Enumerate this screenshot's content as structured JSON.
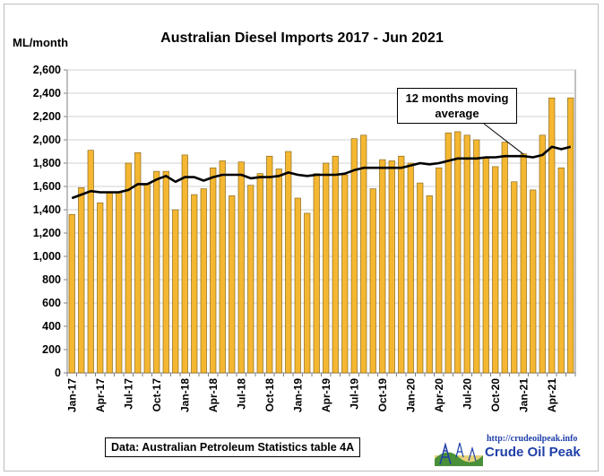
{
  "chart": {
    "title": "Australian Diesel Imports 2017 - Jun 2021",
    "y_unit": "ML/month",
    "callout_line1": "12 months moving",
    "callout_line2": "average",
    "source": "Data: Australian Petroleum Statistics table 4A"
  },
  "logo": {
    "url": "http://crudeoilpeak.info",
    "name": "Crude Oil Peak"
  },
  "colors": {
    "bar_fill": "#f5b731",
    "bar_stroke": "#7a5a10",
    "line": "#000000",
    "grid": "#d0d0d0",
    "logo_text": "#1f3fa8"
  },
  "chart_data": {
    "type": "bar",
    "title": "Australian Diesel Imports 2017 - Jun 2021",
    "ylabel": "ML/month",
    "ylim": [
      0,
      2600
    ],
    "yticks": [
      0,
      200,
      400,
      600,
      800,
      1000,
      1200,
      1400,
      1600,
      1800,
      2000,
      2200,
      2400,
      2600
    ],
    "ytick_labels": [
      "0",
      "200",
      "400",
      "600",
      "800",
      "1,000",
      "1,200",
      "1,400",
      "1,600",
      "1,800",
      "2,000",
      "2,200",
      "2,400",
      "2,600"
    ],
    "grid": true,
    "categories": [
      "Jan-17",
      "Feb-17",
      "Mar-17",
      "Apr-17",
      "May-17",
      "Jun-17",
      "Jul-17",
      "Aug-17",
      "Sep-17",
      "Oct-17",
      "Nov-17",
      "Dec-17",
      "Jan-18",
      "Feb-18",
      "Mar-18",
      "Apr-18",
      "May-18",
      "Jun-18",
      "Jul-18",
      "Aug-18",
      "Sep-18",
      "Oct-18",
      "Nov-18",
      "Dec-18",
      "Jan-19",
      "Feb-19",
      "Mar-19",
      "Apr-19",
      "May-19",
      "Jun-19",
      "Jul-19",
      "Aug-19",
      "Sep-19",
      "Oct-19",
      "Nov-19",
      "Dec-19",
      "Jan-20",
      "Feb-20",
      "Mar-20",
      "Apr-20",
      "May-20",
      "Jun-20",
      "Jul-20",
      "Aug-20",
      "Sep-20",
      "Oct-20",
      "Nov-20",
      "Dec-20",
      "Jan-21",
      "Feb-21",
      "Mar-21",
      "Apr-21",
      "May-21",
      "Jun-21"
    ],
    "x_tick_labels": [
      "Jan-17",
      "Apr-17",
      "Jul-17",
      "Oct-17",
      "Jan-18",
      "Apr-18",
      "Jul-18",
      "Oct-18",
      "Jan-19",
      "Apr-19",
      "Jul-19",
      "Oct-19",
      "Jan-20",
      "Apr-20",
      "Jul-20",
      "Oct-20",
      "Jan-21",
      "Apr-21"
    ],
    "series": [
      {
        "name": "Diesel imports",
        "type": "bar",
        "values": [
          1360,
          1590,
          1910,
          1460,
          1550,
          1550,
          1800,
          1890,
          1620,
          1730,
          1730,
          1400,
          1870,
          1530,
          1580,
          1760,
          1820,
          1520,
          1810,
          1610,
          1710,
          1860,
          1750,
          1900,
          1500,
          1370,
          1710,
          1800,
          1860,
          1700,
          2010,
          2040,
          1580,
          1830,
          1820,
          1860,
          1800,
          1630,
          1520,
          1760,
          2060,
          2070,
          2040,
          2000,
          1840,
          1770,
          1980,
          1640,
          1880,
          1570,
          2040,
          2360,
          1760,
          2360
        ]
      },
      {
        "name": "12 months moving average",
        "type": "line",
        "values": [
          1500,
          1530,
          1560,
          1550,
          1550,
          1550,
          1570,
          1620,
          1620,
          1660,
          1690,
          1640,
          1680,
          1680,
          1650,
          1680,
          1700,
          1700,
          1700,
          1670,
          1680,
          1680,
          1690,
          1720,
          1700,
          1690,
          1700,
          1700,
          1700,
          1710,
          1740,
          1760,
          1760,
          1760,
          1760,
          1760,
          1780,
          1800,
          1790,
          1800,
          1820,
          1840,
          1840,
          1840,
          1850,
          1850,
          1860,
          1860,
          1860,
          1850,
          1870,
          1940,
          1920,
          1940
        ]
      }
    ]
  }
}
